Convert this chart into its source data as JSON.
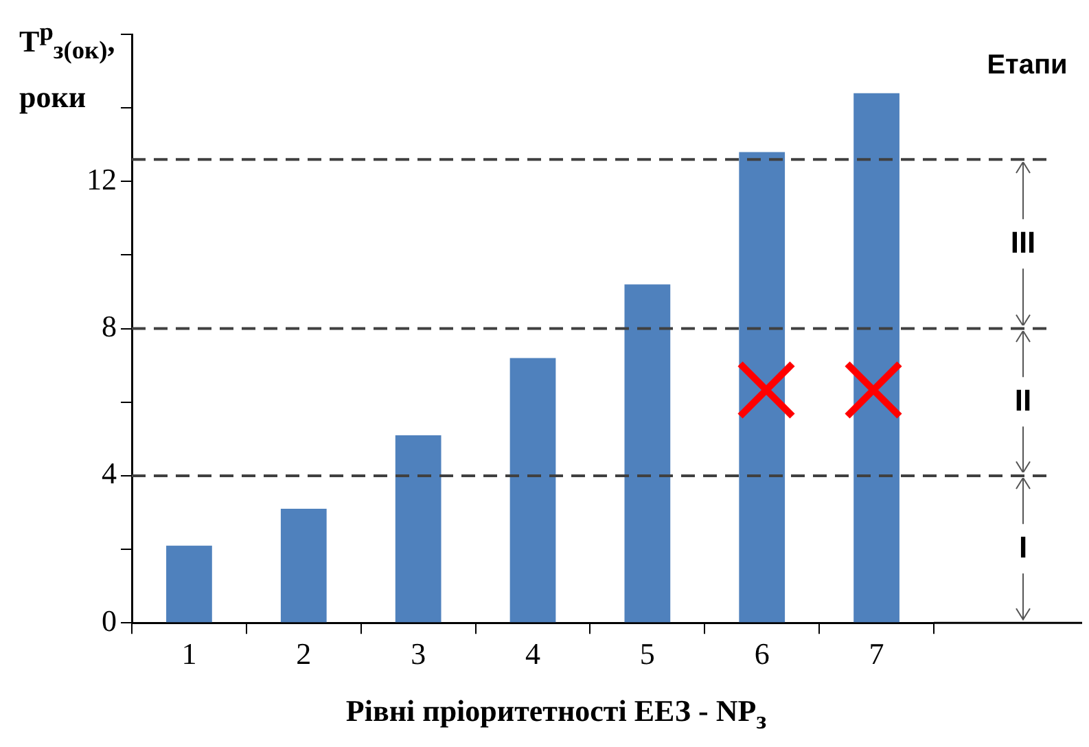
{
  "chart_data": {
    "type": "bar",
    "xlabel": "Рівні пріоритетності ЕЕЗ - NP$_{з}$",
    "ylabel": "T$^{р}$$_{з(ок)}$, роки",
    "categories": [
      "1",
      "2",
      "3",
      "4",
      "5",
      "6",
      "7"
    ],
    "values": [
      2.1,
      3.1,
      5.1,
      7.2,
      9.2,
      12.8,
      14.4
    ],
    "color": "#4f81bd",
    "ylim": [
      0,
      16
    ],
    "yticks": [
      0,
      {
        "value": 2,
        "label": null
      },
      4,
      {
        "value": 6,
        "label": null
      },
      8,
      {
        "value": 10,
        "label": null
      },
      12,
      {
        "value": 14,
        "label": null
      },
      {
        "value": 16,
        "label": null
      }
    ],
    "ref_lines": [
      {
        "axis": "y",
        "value": 4,
        "color": "#404040",
        "line_style": "dashed"
      },
      {
        "axis": "y",
        "value": 8,
        "color": "#404040",
        "line_style": "dashed"
      },
      {
        "axis": "y",
        "value": 12.6,
        "color": "#404040",
        "line_style": "dashed"
      }
    ],
    "annotations": [
      "Етапи",
      "I",
      "II",
      "III"
    ],
    "grid": false,
    "legend": false
  }
}
